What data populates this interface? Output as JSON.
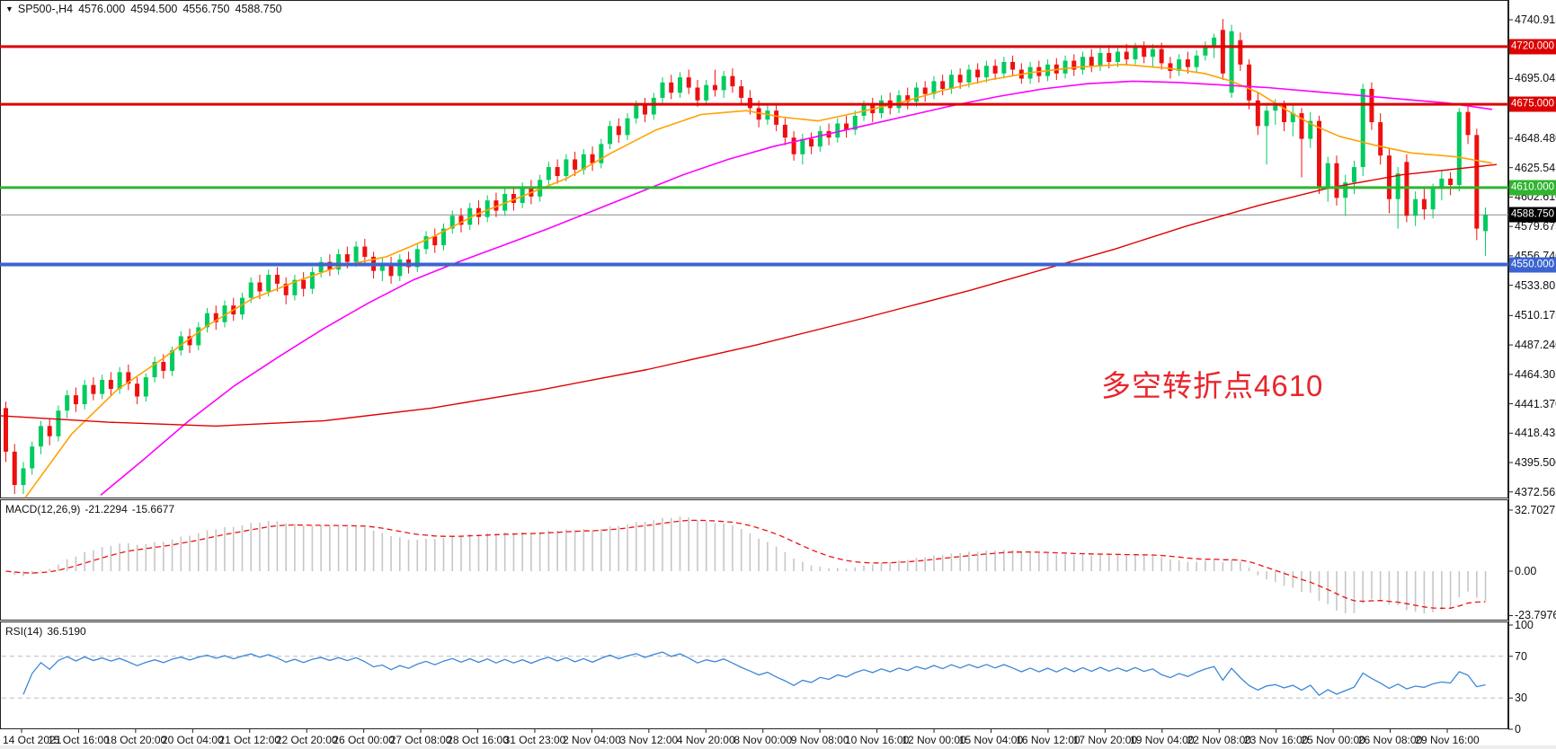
{
  "title": {
    "symbol_period": "SP500-,H4",
    "open": "4576.000",
    "high": "4594.500",
    "low": "4556.750",
    "close": "4588.750"
  },
  "annotation": {
    "text": "多空转折点4610",
    "color": "#e8262d"
  },
  "colors": {
    "candle_up": "#00cb5e",
    "candle_down": "#ee0f0f",
    "ma_orange": "#ffa200",
    "ma_magenta": "#ff00ff",
    "ma_red": "#e00000",
    "level_red": "#dd0000",
    "level_green": "#2fb52f",
    "level_blue": "#3c64d0",
    "current_line": "#8c8c8c",
    "current_badge_bg": "#000000",
    "macd_histogram": "#c6c6c6",
    "macd_signal": "#ee1111",
    "rsi_line": "#3b87d9",
    "panel_border": "#222222"
  },
  "macd_panel": {
    "name": "MACD(12,26,9)",
    "value_main": "-21.2294",
    "value_signal": "-15.6677",
    "ticks": [
      "32.7027",
      "0.00",
      "-23.7976"
    ]
  },
  "rsi_panel": {
    "name": "RSI(14)",
    "value": "36.5190",
    "ticks": [
      "100",
      "70",
      "30",
      "0"
    ],
    "levels": [
      70,
      30
    ]
  },
  "chart_data": {
    "type": "candlestick",
    "symbol": "SP500-,H4",
    "price_axis_ticks": [
      "4740.915",
      "4717.980",
      "4695.045",
      "4672.110",
      "4648.480",
      "4625.545",
      "4602.610",
      "4579.675",
      "4556.740",
      "4533.805",
      "4510.175",
      "4487.240",
      "4464.305",
      "4441.370",
      "4418.435",
      "4395.500",
      "4372.565"
    ],
    "time_axis_labels": [
      "14 Oct 2021",
      "15 Oct 16:00",
      "18 Oct 20:00",
      "20 Oct 04:00",
      "21 Oct 12:00",
      "22 Oct 20:00",
      "26 Oct 00:00",
      "27 Oct 08:00",
      "28 Oct 16:00",
      "31 Oct 23:00",
      "2 Nov 04:00",
      "3 Nov 12:00",
      "4 Nov 20:00",
      "8 Nov 00:00",
      "9 Nov 08:00",
      "10 Nov 16:00",
      "12 Nov 00:00",
      "15 Nov 04:00",
      "16 Nov 12:00",
      "17 Nov 20:00",
      "19 Nov 04:00",
      "22 Nov 08:00",
      "23 Nov 16:00",
      "25 Nov 00:00",
      "26 Nov 08:00",
      "29 Nov 16:00"
    ],
    "levels": [
      {
        "value": 4720.0,
        "label": "4720.000",
        "color": "#dd0000",
        "width": 3
      },
      {
        "value": 4675.0,
        "label": "4675.000",
        "color": "#dd0000",
        "width": 3
      },
      {
        "value": 4610.0,
        "label": "4610.000",
        "color": "#2fb52f",
        "width": 3
      },
      {
        "value": 4550.0,
        "label": "4550.000",
        "color": "#3c64d0",
        "width": 4
      }
    ],
    "current_price": {
      "value": 4588.75,
      "label": "4588.750"
    },
    "ohlc": [
      [
        4438,
        4443,
        4396,
        4404
      ],
      [
        4404,
        4410,
        4371,
        4378
      ],
      [
        4378,
        4396,
        4371,
        4391
      ],
      [
        4391,
        4412,
        4386,
        4408
      ],
      [
        4408,
        4428,
        4402,
        4424
      ],
      [
        4424,
        4430,
        4409,
        4416
      ],
      [
        4416,
        4440,
        4412,
        4436
      ],
      [
        4436,
        4452,
        4430,
        4448
      ],
      [
        4448,
        4454,
        4435,
        4441
      ],
      [
        4441,
        4460,
        4437,
        4456
      ],
      [
        4456,
        4462,
        4444,
        4449
      ],
      [
        4449,
        4464,
        4445,
        4460
      ],
      [
        4460,
        4466,
        4447,
        4453
      ],
      [
        4453,
        4470,
        4449,
        4466
      ],
      [
        4466,
        4472,
        4452,
        4457
      ],
      [
        4457,
        4462,
        4441,
        4447
      ],
      [
        4447,
        4465,
        4443,
        4462
      ],
      [
        4462,
        4478,
        4458,
        4474
      ],
      [
        4474,
        4480,
        4461,
        4467
      ],
      [
        4467,
        4486,
        4463,
        4483
      ],
      [
        4483,
        4498,
        4479,
        4494
      ],
      [
        4494,
        4500,
        4481,
        4487
      ],
      [
        4487,
        4505,
        4483,
        4501
      ],
      [
        4501,
        4516,
        4497,
        4512
      ],
      [
        4512,
        4518,
        4499,
        4505
      ],
      [
        4505,
        4522,
        4501,
        4518
      ],
      [
        4518,
        4524,
        4506,
        4511
      ],
      [
        4511,
        4528,
        4507,
        4524
      ],
      [
        4524,
        4540,
        4520,
        4536
      ],
      [
        4536,
        4542,
        4523,
        4529
      ],
      [
        4529,
        4546,
        4525,
        4542
      ],
      [
        4542,
        4548,
        4529,
        4535
      ],
      [
        4535,
        4540,
        4519,
        4526
      ],
      [
        4526,
        4542,
        4522,
        4538
      ],
      [
        4538,
        4544,
        4525,
        4531
      ],
      [
        4531,
        4548,
        4527,
        4544
      ],
      [
        4544,
        4556,
        4540,
        4552
      ],
      [
        4552,
        4558,
        4541,
        4546
      ],
      [
        4546,
        4562,
        4542,
        4558
      ],
      [
        4558,
        4564,
        4547,
        4552
      ],
      [
        4552,
        4568,
        4548,
        4564
      ],
      [
        4564,
        4570,
        4551,
        4556
      ],
      [
        4556,
        4560,
        4539,
        4545
      ],
      [
        4545,
        4556,
        4537,
        4551
      ],
      [
        4551,
        4556,
        4535,
        4541
      ],
      [
        4541,
        4558,
        4537,
        4554
      ],
      [
        4554,
        4560,
        4543,
        4548
      ],
      [
        4548,
        4566,
        4544,
        4562
      ],
      [
        4562,
        4576,
        4558,
        4572
      ],
      [
        4572,
        4578,
        4559,
        4565
      ],
      [
        4565,
        4582,
        4561,
        4578
      ],
      [
        4578,
        4592,
        4574,
        4588
      ],
      [
        4588,
        4594,
        4575,
        4581
      ],
      [
        4581,
        4598,
        4577,
        4594
      ],
      [
        4594,
        4600,
        4581,
        4587
      ],
      [
        4587,
        4604,
        4583,
        4600
      ],
      [
        4600,
        4606,
        4587,
        4592
      ],
      [
        4592,
        4610,
        4588,
        4605
      ],
      [
        4605,
        4611,
        4592,
        4598
      ],
      [
        4598,
        4614,
        4594,
        4610
      ],
      [
        4610,
        4616,
        4597,
        4603
      ],
      [
        4603,
        4620,
        4599,
        4616
      ],
      [
        4616,
        4630,
        4612,
        4626
      ],
      [
        4626,
        4632,
        4613,
        4619
      ],
      [
        4619,
        4636,
        4615,
        4632
      ],
      [
        4632,
        4638,
        4619,
        4624
      ],
      [
        4624,
        4640,
        4620,
        4636
      ],
      [
        4636,
        4642,
        4623,
        4629
      ],
      [
        4629,
        4648,
        4625,
        4644
      ],
      [
        4644,
        4662,
        4640,
        4658
      ],
      [
        4658,
        4664,
        4645,
        4651
      ],
      [
        4651,
        4668,
        4647,
        4664
      ],
      [
        4664,
        4678,
        4660,
        4674
      ],
      [
        4674,
        4680,
        4661,
        4667
      ],
      [
        4667,
        4684,
        4663,
        4680
      ],
      [
        4680,
        4696,
        4676,
        4692
      ],
      [
        4692,
        4698,
        4679,
        4684
      ],
      [
        4684,
        4700,
        4680,
        4696
      ],
      [
        4696,
        4702,
        4683,
        4688
      ],
      [
        4688,
        4694,
        4673,
        4678
      ],
      [
        4678,
        4694,
        4674,
        4690
      ],
      [
        4690,
        4702,
        4681,
        4686
      ],
      [
        4686,
        4701,
        4680,
        4697
      ],
      [
        4697,
        4703,
        4684,
        4689
      ],
      [
        4689,
        4694,
        4675,
        4680
      ],
      [
        4680,
        4686,
        4667,
        4672
      ],
      [
        4672,
        4678,
        4657,
        4663
      ],
      [
        4663,
        4674,
        4659,
        4670
      ],
      [
        4670,
        4675,
        4654,
        4659
      ],
      [
        4659,
        4664,
        4643,
        4649
      ],
      [
        4649,
        4654,
        4631,
        4636
      ],
      [
        4636,
        4652,
        4628,
        4648
      ],
      [
        4648,
        4653,
        4636,
        4642
      ],
      [
        4642,
        4658,
        4638,
        4654
      ],
      [
        4654,
        4660,
        4643,
        4649
      ],
      [
        4649,
        4664,
        4645,
        4660
      ],
      [
        4660,
        4666,
        4649,
        4655
      ],
      [
        4655,
        4670,
        4651,
        4666
      ],
      [
        4666,
        4678,
        4662,
        4674
      ],
      [
        4674,
        4680,
        4661,
        4668
      ],
      [
        4668,
        4682,
        4664,
        4678
      ],
      [
        4678,
        4684,
        4667,
        4672
      ],
      [
        4672,
        4686,
        4668,
        4682
      ],
      [
        4682,
        4688,
        4671,
        4677
      ],
      [
        4677,
        4692,
        4673,
        4688
      ],
      [
        4688,
        4693,
        4677,
        4683
      ],
      [
        4683,
        4697,
        4679,
        4693
      ],
      [
        4693,
        4698,
        4682,
        4687
      ],
      [
        4687,
        4702,
        4683,
        4698
      ],
      [
        4698,
        4703,
        4687,
        4692
      ],
      [
        4692,
        4706,
        4688,
        4702
      ],
      [
        4702,
        4707,
        4691,
        4696
      ],
      [
        4696,
        4709,
        4692,
        4705
      ],
      [
        4705,
        4710,
        4694,
        4699
      ],
      [
        4699,
        4712,
        4695,
        4708
      ],
      [
        4708,
        4713,
        4697,
        4702
      ],
      [
        4702,
        4707,
        4691,
        4695
      ],
      [
        4695,
        4708,
        4691,
        4704
      ],
      [
        4704,
        4709,
        4692,
        4697
      ],
      [
        4697,
        4710,
        4693,
        4706
      ],
      [
        4706,
        4711,
        4694,
        4699
      ],
      [
        4699,
        4713,
        4695,
        4709
      ],
      [
        4709,
        4714,
        4697,
        4702
      ],
      [
        4702,
        4716,
        4698,
        4712
      ],
      [
        4712,
        4718,
        4700,
        4705
      ],
      [
        4705,
        4719,
        4701,
        4715
      ],
      [
        4715,
        4721,
        4703,
        4708
      ],
      [
        4708,
        4720,
        4704,
        4716
      ],
      [
        4716,
        4722,
        4705,
        4710
      ],
      [
        4710,
        4723,
        4706,
        4719
      ],
      [
        4719,
        4724,
        4707,
        4712
      ],
      [
        4712,
        4722,
        4704,
        4718
      ],
      [
        4718,
        4723,
        4702,
        4707
      ],
      [
        4707,
        4712,
        4695,
        4701
      ],
      [
        4701,
        4714,
        4697,
        4710
      ],
      [
        4710,
        4716,
        4699,
        4704
      ],
      [
        4704,
        4717,
        4700,
        4713
      ],
      [
        4713,
        4724,
        4709,
        4721
      ],
      [
        4721,
        4730,
        4711,
        4727
      ],
      [
        4733,
        4741.5,
        4694,
        4699
      ],
      [
        4684,
        4737,
        4680,
        4732
      ],
      [
        4725,
        4731,
        4701,
        4706
      ],
      [
        4706,
        4710,
        4671,
        4678
      ],
      [
        4678,
        4684,
        4651,
        4658
      ],
      [
        4658,
        4676,
        4628,
        4670
      ],
      [
        4670,
        4679,
        4659,
        4674
      ],
      [
        4674,
        4678,
        4654,
        4661
      ],
      [
        4661,
        4674,
        4650,
        4668
      ],
      [
        4668,
        4672,
        4618,
        4648
      ],
      [
        4648,
        4669,
        4641,
        4662
      ],
      [
        4662,
        4666,
        4605,
        4611
      ],
      [
        4611,
        4634,
        4599,
        4629
      ],
      [
        4629,
        4635,
        4596,
        4602
      ],
      [
        4602,
        4620,
        4588,
        4614
      ],
      [
        4614,
        4631,
        4605,
        4626
      ],
      [
        4626,
        4691,
        4619,
        4687
      ],
      [
        4687,
        4692,
        4655,
        4661
      ],
      [
        4661,
        4668,
        4628,
        4635
      ],
      [
        4635,
        4641,
        4590,
        4601
      ],
      [
        4601,
        4626,
        4578,
        4621
      ],
      [
        4630,
        4636,
        4583,
        4588
      ],
      [
        4588,
        4607,
        4580,
        4601
      ],
      [
        4601,
        4611,
        4585,
        4593
      ],
      [
        4593,
        4613,
        4586,
        4609
      ],
      [
        4609,
        4623,
        4600,
        4617
      ],
      [
        4617,
        4622,
        4604,
        4612
      ],
      [
        4612,
        4672,
        4607,
        4669
      ],
      [
        4669,
        4673,
        4644,
        4651
      ],
      [
        4651,
        4656,
        4569,
        4578
      ],
      [
        4576,
        4594.5,
        4556.75,
        4588.75
      ]
    ],
    "moving_averages": {
      "orange": [
        [
          28,
          4368
        ],
        [
          80,
          4418
        ],
        [
          130,
          4452
        ],
        [
          180,
          4476
        ],
        [
          230,
          4502
        ],
        [
          280,
          4523
        ],
        [
          330,
          4537
        ],
        [
          380,
          4549
        ],
        [
          430,
          4556
        ],
        [
          480,
          4571
        ],
        [
          530,
          4589
        ],
        [
          580,
          4603
        ],
        [
          630,
          4617
        ],
        [
          680,
          4637
        ],
        [
          730,
          4655
        ],
        [
          780,
          4667
        ],
        [
          830,
          4670
        ],
        [
          870,
          4665
        ],
        [
          910,
          4662
        ],
        [
          950,
          4668
        ],
        [
          1000,
          4676
        ],
        [
          1050,
          4686
        ],
        [
          1100,
          4694
        ],
        [
          1150,
          4700
        ],
        [
          1200,
          4704
        ],
        [
          1250,
          4706
        ],
        [
          1300,
          4703
        ],
        [
          1340,
          4699
        ],
        [
          1370,
          4693
        ],
        [
          1400,
          4684
        ],
        [
          1430,
          4671
        ],
        [
          1460,
          4659
        ],
        [
          1490,
          4650
        ],
        [
          1530,
          4643
        ],
        [
          1570,
          4637
        ],
        [
          1620,
          4634
        ],
        [
          1660,
          4629
        ]
      ],
      "magenta": [
        [
          112,
          4370
        ],
        [
          160,
          4398
        ],
        [
          210,
          4428
        ],
        [
          260,
          4455
        ],
        [
          310,
          4478
        ],
        [
          360,
          4500
        ],
        [
          410,
          4520
        ],
        [
          460,
          4538
        ],
        [
          510,
          4552
        ],
        [
          560,
          4565
        ],
        [
          610,
          4578
        ],
        [
          660,
          4592
        ],
        [
          710,
          4606
        ],
        [
          760,
          4620
        ],
        [
          810,
          4632
        ],
        [
          860,
          4642
        ],
        [
          910,
          4650
        ],
        [
          960,
          4658
        ],
        [
          1010,
          4666
        ],
        [
          1060,
          4674
        ],
        [
          1110,
          4681
        ],
        [
          1160,
          4687
        ],
        [
          1210,
          4691
        ],
        [
          1260,
          4693
        ],
        [
          1310,
          4692
        ],
        [
          1360,
          4690
        ],
        [
          1410,
          4688
        ],
        [
          1460,
          4685
        ],
        [
          1510,
          4682
        ],
        [
          1560,
          4679
        ],
        [
          1610,
          4676
        ],
        [
          1660,
          4671
        ]
      ],
      "red": [
        [
          0,
          4432
        ],
        [
          120,
          4427
        ],
        [
          240,
          4424
        ],
        [
          360,
          4428
        ],
        [
          480,
          4438
        ],
        [
          600,
          4452
        ],
        [
          720,
          4468
        ],
        [
          840,
          4487
        ],
        [
          960,
          4508
        ],
        [
          1080,
          4530
        ],
        [
          1160,
          4546
        ],
        [
          1240,
          4562
        ],
        [
          1320,
          4580
        ],
        [
          1400,
          4596
        ],
        [
          1480,
          4610
        ],
        [
          1560,
          4620
        ],
        [
          1665,
          4628
        ]
      ]
    }
  }
}
